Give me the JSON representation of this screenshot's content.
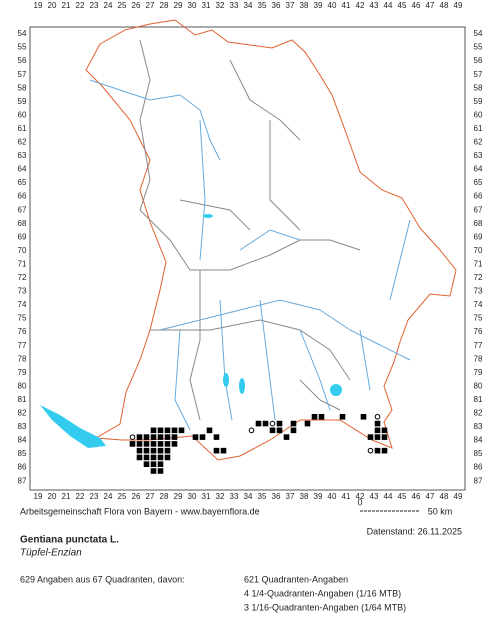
{
  "map": {
    "x_labels": [
      19,
      20,
      21,
      22,
      23,
      24,
      25,
      26,
      27,
      28,
      29,
      30,
      31,
      32,
      33,
      34,
      35,
      36,
      37,
      38,
      39,
      40,
      41,
      42,
      43,
      44,
      45,
      46,
      47,
      48,
      49
    ],
    "y_labels": [
      54,
      55,
      56,
      57,
      58,
      59,
      60,
      61,
      62,
      63,
      64,
      65,
      66,
      67,
      68,
      69,
      70,
      71,
      72,
      73,
      74,
      75,
      76,
      77,
      78,
      79,
      80,
      81,
      82,
      83,
      84,
      85,
      86,
      87
    ],
    "quadrants": [
      [
        27.25,
        83.25
      ],
      [
        27.75,
        83.25
      ],
      [
        28.25,
        83.25
      ],
      [
        28.75,
        83.25
      ],
      [
        26.25,
        83.75
      ],
      [
        26.75,
        83.75
      ],
      [
        27.25,
        83.75
      ],
      [
        27.75,
        83.75
      ],
      [
        28.25,
        83.75
      ],
      [
        28.75,
        83.75
      ],
      [
        30.25,
        83.75
      ],
      [
        30.75,
        83.75
      ],
      [
        31.75,
        83.75
      ],
      [
        25.75,
        84.25
      ],
      [
        26.25,
        84.25
      ],
      [
        26.75,
        84.25
      ],
      [
        27.25,
        84.25
      ],
      [
        27.75,
        84.25
      ],
      [
        28.25,
        84.25
      ],
      [
        28.75,
        84.25
      ],
      [
        26.25,
        84.75
      ],
      [
        26.75,
        84.75
      ],
      [
        27.25,
        84.75
      ],
      [
        27.75,
        84.75
      ],
      [
        28.25,
        84.75
      ],
      [
        31.75,
        84.75
      ],
      [
        32.25,
        84.75
      ],
      [
        26.25,
        85.25
      ],
      [
        26.75,
        85.25
      ],
      [
        27.25,
        85.25
      ],
      [
        27.75,
        85.25
      ],
      [
        28.25,
        85.25
      ],
      [
        26.75,
        85.75
      ],
      [
        27.25,
        85.75
      ],
      [
        27.75,
        85.75
      ],
      [
        27.25,
        86.25
      ],
      [
        27.75,
        86.25
      ],
      [
        31.25,
        83.25
      ],
      [
        29.25,
        83.25
      ],
      [
        38.75,
        82.25
      ],
      [
        39.25,
        82.25
      ],
      [
        40.75,
        82.25
      ],
      [
        42.25,
        82.25
      ],
      [
        34.75,
        82.75
      ],
      [
        35.25,
        82.75
      ],
      [
        36.25,
        82.75
      ],
      [
        37.25,
        82.75
      ],
      [
        38.25,
        82.75
      ],
      [
        35.75,
        83.25
      ],
      [
        36.25,
        83.25
      ],
      [
        37.25,
        83.25
      ],
      [
        36.75,
        83.75
      ],
      [
        43.25,
        82.75
      ],
      [
        43.25,
        83.25
      ],
      [
        43.75,
        83.25
      ],
      [
        42.75,
        83.75
      ],
      [
        43.25,
        83.75
      ],
      [
        43.75,
        83.75
      ],
      [
        43.25,
        84.75
      ],
      [
        43.75,
        84.75
      ]
    ],
    "circles": [
      [
        25.75,
        83.75
      ],
      [
        43.25,
        82.25
      ],
      [
        34.25,
        83.25
      ],
      [
        35.75,
        82.75
      ],
      [
        42.75,
        84.75
      ]
    ],
    "credit": "Arbeitsgemeinschaft Flora von Bayern - www.bayernflora.de",
    "scale_start": "0",
    "scale_end": "50 km",
    "date": "Datenstand: 26.11.2025",
    "species": "Gentiana punctata L.",
    "common_name": "Tüpfel-Enzian",
    "summary": "629 Angaben aus 67 Quadranten, davon:",
    "details": [
      "621 Quadranten-Angaben",
      "4 1/4-Quadranten-Angaben (1/16 MTB)",
      "3 1/16-Quadranten-Angaben (1/64 MTB)"
    ]
  }
}
